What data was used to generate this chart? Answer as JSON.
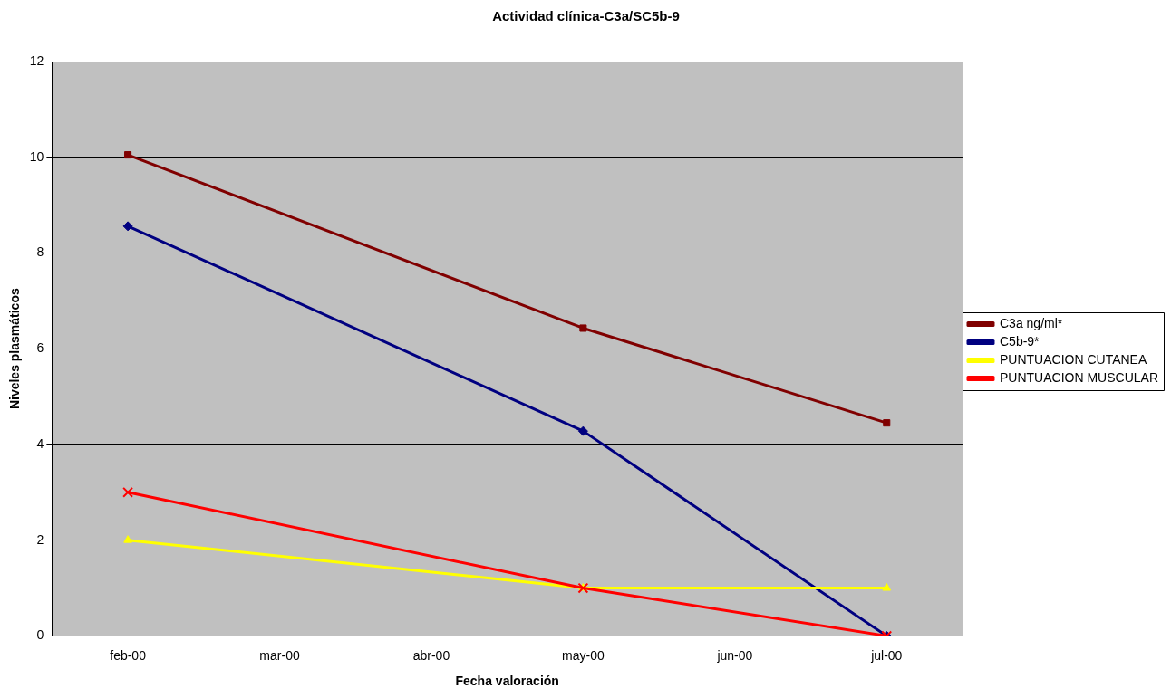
{
  "chart_data": {
    "type": "line",
    "title": "Actividad clínica-C3a/SC5b-9",
    "xlabel": "Fecha valoración",
    "ylabel": "Niveles plasmáticos",
    "categories": [
      "feb-00",
      "mar-00",
      "abr-00",
      "may-00",
      "jun-00",
      "jul-00"
    ],
    "series": [
      {
        "name": "C3a ng/ml*",
        "color": "#800000",
        "marker": "square",
        "values": [
          10.05,
          null,
          null,
          6.43,
          null,
          4.45
        ]
      },
      {
        "name": "C5b-9*",
        "color": "#000080",
        "marker": "diamond",
        "values": [
          8.56,
          null,
          null,
          4.28,
          null,
          0
        ]
      },
      {
        "name": "PUNTUACION CUTANEA",
        "color": "#ffff00",
        "marker": "triangle",
        "values": [
          2,
          null,
          null,
          1,
          null,
          1
        ]
      },
      {
        "name": "PUNTUACION MUSCULAR",
        "color": "#ff0000",
        "marker": "cross",
        "values": [
          3,
          null,
          null,
          1,
          null,
          0
        ]
      }
    ],
    "ylim": [
      0,
      12
    ],
    "yticks": [
      0,
      2,
      4,
      6,
      8,
      10,
      12
    ],
    "grid": "y",
    "legend": "right",
    "line_style": "solid"
  }
}
